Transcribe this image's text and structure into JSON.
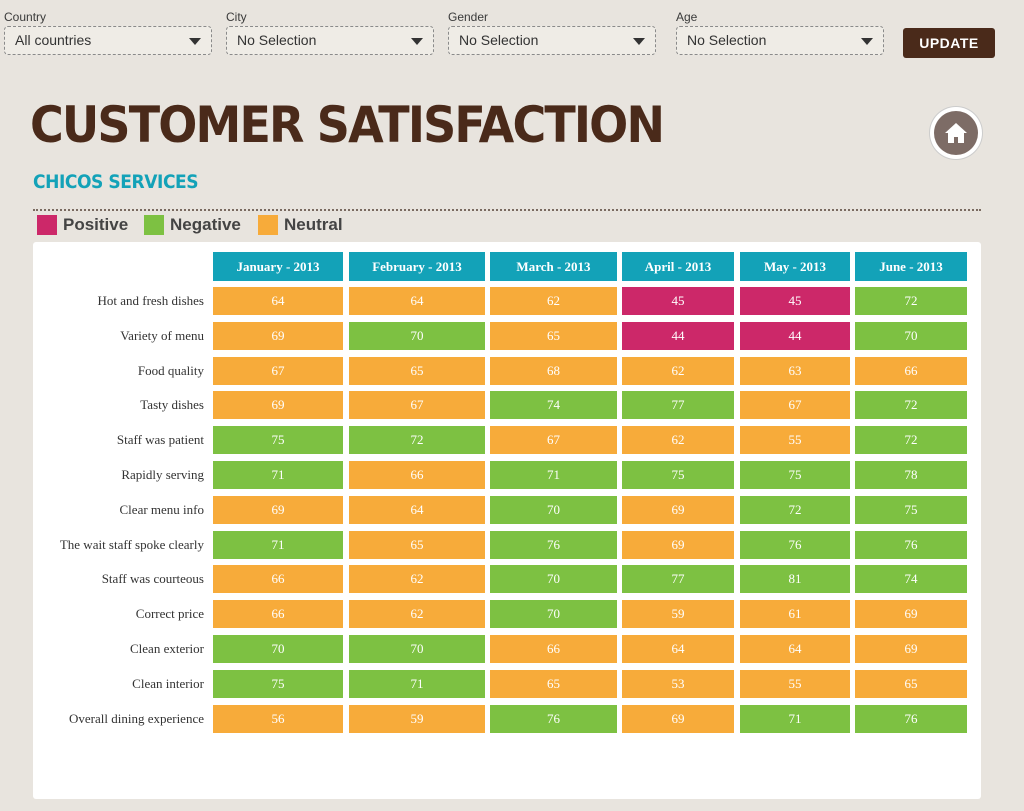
{
  "filters": [
    {
      "label": "Country",
      "value": "All countries"
    },
    {
      "label": "City",
      "value": "No Selection"
    },
    {
      "label": "Gender",
      "value": "No Selection"
    },
    {
      "label": "Age",
      "value": "No Selection"
    }
  ],
  "update_label": "UPDATE",
  "title": "CUSTOMER SATISFACTION",
  "subtitle": "CHICOS SERVICES",
  "legend": [
    {
      "label": "Positive",
      "color": "#cc2869"
    },
    {
      "label": "Negative",
      "color": "#7dc142"
    },
    {
      "label": "Neutral",
      "color": "#f7ab3a"
    }
  ],
  "colors": {
    "accent": "#13a2b8",
    "brand": "#4a2a1a",
    "positive": "#cc2869",
    "negative": "#7dc142",
    "neutral": "#f7ab3a"
  },
  "icons": {
    "home": "home-icon",
    "dropdown": "chevron-down-icon"
  },
  "table": {
    "columns": [
      "January - 2013",
      "February - 2013",
      "March - 2013",
      "April - 2013",
      "May - 2013",
      "June - 2013"
    ],
    "rows": [
      {
        "label": "Hot and fresh dishes",
        "cells": [
          {
            "v": "64",
            "s": "neutral"
          },
          {
            "v": "64",
            "s": "neutral"
          },
          {
            "v": "62",
            "s": "neutral"
          },
          {
            "v": "45",
            "s": "positive"
          },
          {
            "v": "45",
            "s": "positive"
          },
          {
            "v": "72",
            "s": "negative"
          }
        ]
      },
      {
        "label": "Variety of menu",
        "cells": [
          {
            "v": "69",
            "s": "neutral"
          },
          {
            "v": "70",
            "s": "negative"
          },
          {
            "v": "65",
            "s": "neutral"
          },
          {
            "v": "44",
            "s": "positive"
          },
          {
            "v": "44",
            "s": "positive"
          },
          {
            "v": "70",
            "s": "negative"
          }
        ]
      },
      {
        "label": "Food quality",
        "cells": [
          {
            "v": "67",
            "s": "neutral"
          },
          {
            "v": "65",
            "s": "neutral"
          },
          {
            "v": "68",
            "s": "neutral"
          },
          {
            "v": "62",
            "s": "neutral"
          },
          {
            "v": "63",
            "s": "neutral"
          },
          {
            "v": "66",
            "s": "neutral"
          }
        ]
      },
      {
        "label": "Tasty dishes",
        "cells": [
          {
            "v": "69",
            "s": "neutral"
          },
          {
            "v": "67",
            "s": "neutral"
          },
          {
            "v": "74",
            "s": "negative"
          },
          {
            "v": "77",
            "s": "negative"
          },
          {
            "v": "67",
            "s": "neutral"
          },
          {
            "v": "72",
            "s": "negative"
          }
        ]
      },
      {
        "label": "Staff was patient",
        "cells": [
          {
            "v": "75",
            "s": "negative"
          },
          {
            "v": "72",
            "s": "negative"
          },
          {
            "v": "67",
            "s": "neutral"
          },
          {
            "v": "62",
            "s": "neutral"
          },
          {
            "v": "55",
            "s": "neutral"
          },
          {
            "v": "72",
            "s": "negative"
          }
        ]
      },
      {
        "label": "Rapidly serving",
        "cells": [
          {
            "v": "71",
            "s": "negative"
          },
          {
            "v": "66",
            "s": "neutral"
          },
          {
            "v": "71",
            "s": "negative"
          },
          {
            "v": "75",
            "s": "negative"
          },
          {
            "v": "75",
            "s": "negative"
          },
          {
            "v": "78",
            "s": "negative"
          }
        ]
      },
      {
        "label": "Clear menu info",
        "cells": [
          {
            "v": "69",
            "s": "neutral"
          },
          {
            "v": "64",
            "s": "neutral"
          },
          {
            "v": "70",
            "s": "negative"
          },
          {
            "v": "69",
            "s": "neutral"
          },
          {
            "v": "72",
            "s": "negative"
          },
          {
            "v": "75",
            "s": "negative"
          }
        ]
      },
      {
        "label": "The wait staff spoke clearly",
        "cells": [
          {
            "v": "71",
            "s": "negative"
          },
          {
            "v": "65",
            "s": "neutral"
          },
          {
            "v": "76",
            "s": "negative"
          },
          {
            "v": "69",
            "s": "neutral"
          },
          {
            "v": "76",
            "s": "negative"
          },
          {
            "v": "76",
            "s": "negative"
          }
        ]
      },
      {
        "label": "Staff was courteous",
        "cells": [
          {
            "v": "66",
            "s": "neutral"
          },
          {
            "v": "62",
            "s": "neutral"
          },
          {
            "v": "70",
            "s": "negative"
          },
          {
            "v": "77",
            "s": "negative"
          },
          {
            "v": "81",
            "s": "negative"
          },
          {
            "v": "74",
            "s": "negative"
          }
        ]
      },
      {
        "label": "Correct price",
        "cells": [
          {
            "v": "66",
            "s": "neutral"
          },
          {
            "v": "62",
            "s": "neutral"
          },
          {
            "v": "70",
            "s": "negative"
          },
          {
            "v": "59",
            "s": "neutral"
          },
          {
            "v": "61",
            "s": "neutral"
          },
          {
            "v": "69",
            "s": "neutral"
          }
        ]
      },
      {
        "label": "Clean exterior",
        "cells": [
          {
            "v": "70",
            "s": "negative"
          },
          {
            "v": "70",
            "s": "negative"
          },
          {
            "v": "66",
            "s": "neutral"
          },
          {
            "v": "64",
            "s": "neutral"
          },
          {
            "v": "64",
            "s": "neutral"
          },
          {
            "v": "69",
            "s": "neutral"
          }
        ]
      },
      {
        "label": "Clean interior",
        "cells": [
          {
            "v": "75",
            "s": "negative"
          },
          {
            "v": "71",
            "s": "negative"
          },
          {
            "v": "65",
            "s": "neutral"
          },
          {
            "v": "53",
            "s": "neutral"
          },
          {
            "v": "55",
            "s": "neutral"
          },
          {
            "v": "65",
            "s": "neutral"
          }
        ]
      },
      {
        "label": "Overall dining experience",
        "cells": [
          {
            "v": "56",
            "s": "neutral"
          },
          {
            "v": "59",
            "s": "neutral"
          },
          {
            "v": "76",
            "s": "negative"
          },
          {
            "v": "69",
            "s": "neutral"
          },
          {
            "v": "71",
            "s": "negative"
          },
          {
            "v": "76",
            "s": "negative"
          }
        ]
      }
    ]
  }
}
